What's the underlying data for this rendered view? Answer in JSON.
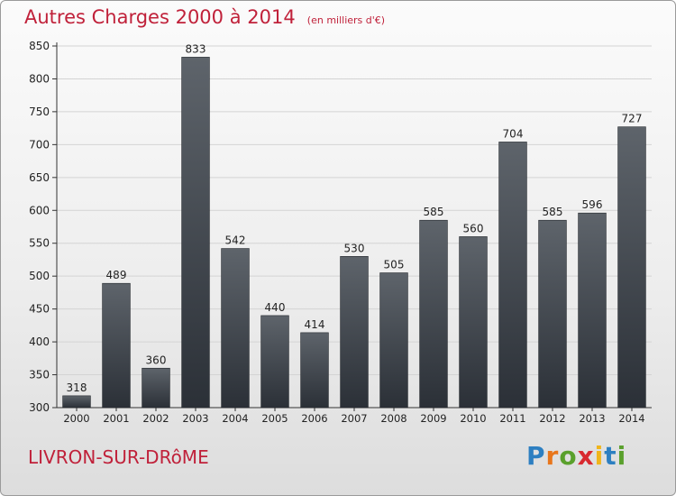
{
  "chart_data": {
    "type": "bar",
    "title": "Autres Charges 2000 à 2014",
    "subtitle": "(en milliers d'€)",
    "categories": [
      "2000",
      "2001",
      "2002",
      "2003",
      "2004",
      "2005",
      "2006",
      "2007",
      "2008",
      "2009",
      "2010",
      "2011",
      "2012",
      "2013",
      "2014"
    ],
    "values": [
      318,
      489,
      360,
      833,
      542,
      440,
      414,
      530,
      505,
      585,
      560,
      704,
      585,
      596,
      727
    ],
    "ylim": [
      300,
      850
    ],
    "yticks": [
      300,
      350,
      400,
      450,
      500,
      550,
      600,
      650,
      700,
      750,
      800,
      850
    ],
    "grid": true,
    "colors": {
      "bar_top": "#5e646b",
      "bar_bottom": "#2b3037",
      "accent": "#c0213a",
      "grid": "#d4d4d4"
    }
  },
  "footer": {
    "commune": "LIVRON-SUR-DRôME",
    "logo_letters": [
      {
        "ch": "P",
        "color": "#2d7fc1"
      },
      {
        "ch": "r",
        "color": "#e8761b"
      },
      {
        "ch": "o",
        "color": "#5aa02c"
      },
      {
        "ch": "x",
        "color": "#d8292f"
      },
      {
        "ch": "i",
        "color": "#f0b51b"
      },
      {
        "ch": "t",
        "color": "#2d7fc1"
      },
      {
        "ch": "i",
        "color": "#5aa02c"
      }
    ]
  }
}
